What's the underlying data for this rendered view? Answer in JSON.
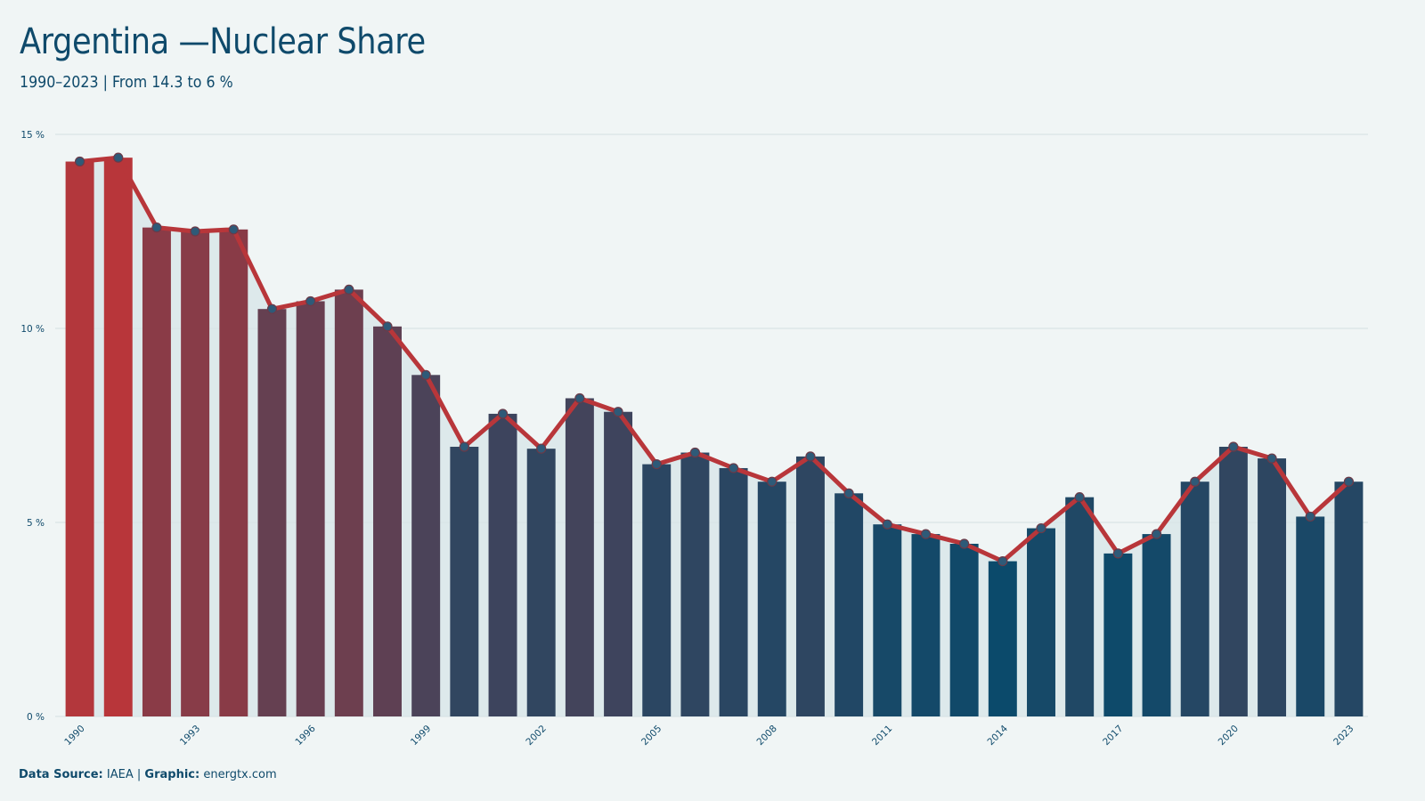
{
  "header": {
    "title": "Argentina —Nuclear Share",
    "subtitle": "1990–2023 | From 14.3 to 6 %"
  },
  "footer": {
    "source_label": "Data Source:",
    "source_value": "IAEA",
    "separator": "|",
    "graphic_label": "Graphic:",
    "graphic_value": "energtx.com"
  },
  "colors": {
    "background": "#f0f5f5",
    "line": "#b8363a",
    "high": "#b8363a",
    "low": "#0b4a6b",
    "marker": "#2e5a78",
    "area": "#d7e4e7",
    "grid": "#dde6e8",
    "text": "#0f4a6b"
  },
  "chart_data": {
    "type": "bar",
    "title": "Argentina —Nuclear Share",
    "subtitle": "1990–2023 | From 14.3 to 6 %",
    "x": [
      1990,
      1991,
      1992,
      1993,
      1994,
      1995,
      1996,
      1997,
      1998,
      1999,
      2000,
      2001,
      2002,
      2003,
      2004,
      2005,
      2006,
      2007,
      2008,
      2009,
      2010,
      2011,
      2012,
      2013,
      2014,
      2015,
      2016,
      2017,
      2018,
      2019,
      2020,
      2021,
      2022,
      2023
    ],
    "values": [
      14.3,
      14.4,
      12.6,
      12.5,
      12.55,
      10.5,
      10.7,
      11.0,
      10.05,
      8.8,
      6.95,
      7.8,
      6.9,
      8.2,
      7.85,
      6.5,
      6.8,
      6.4,
      6.05,
      6.7,
      5.75,
      4.95,
      4.7,
      4.45,
      4.0,
      4.85,
      5.65,
      4.2,
      4.7,
      6.05,
      6.95,
      6.65,
      5.15,
      6.05
    ],
    "xtick_labels": [
      "1990",
      "1993",
      "1996",
      "1999",
      "2002",
      "2005",
      "2008",
      "2011",
      "2014",
      "2017",
      "2020",
      "2023"
    ],
    "ytick_labels": [
      "0 %",
      "5 %",
      "10 %",
      "15 %"
    ],
    "yticks": [
      0,
      5,
      10,
      15
    ],
    "ylim": [
      0,
      15
    ],
    "grid": true,
    "overlay": "line-with-markers-and-area"
  }
}
